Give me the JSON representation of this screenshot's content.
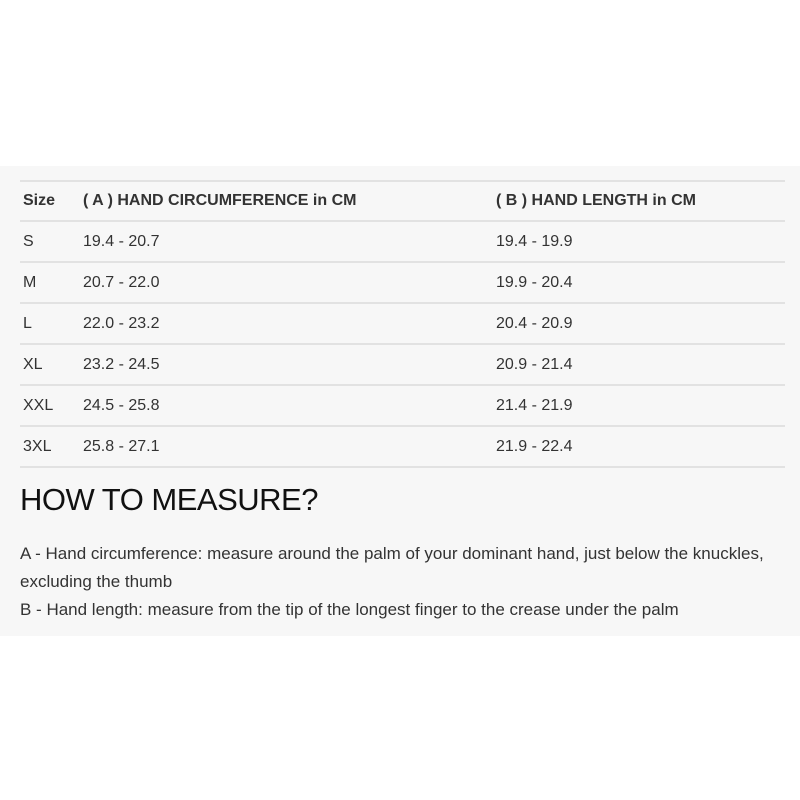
{
  "table": {
    "headers": [
      "Size",
      "( A ) HAND CIRCUMFERENCE in CM",
      "( B ) HAND LENGTH in CM"
    ],
    "rows": [
      [
        "S",
        "19.4 - 20.7",
        "19.4 - 19.9"
      ],
      [
        "M",
        "20.7 - 22.0",
        "19.9 - 20.4"
      ],
      [
        "L",
        "22.0 - 23.2",
        "20.4 - 20.9"
      ],
      [
        "XL",
        "23.2 - 24.5",
        "20.9 - 21.4"
      ],
      [
        "XXL",
        "24.5 - 25.8",
        "21.4 - 21.9"
      ],
      [
        "3XL",
        "25.8 - 27.1",
        "21.9 - 22.4"
      ]
    ]
  },
  "how_to": {
    "title": "HOW TO MEASURE?",
    "lines": [
      "A - Hand circumference: measure around the palm of your dominant hand, just below the knuckles, excluding the thumb",
      "B - Hand length: measure from the tip of the longest finger to the crease under the palm"
    ]
  }
}
